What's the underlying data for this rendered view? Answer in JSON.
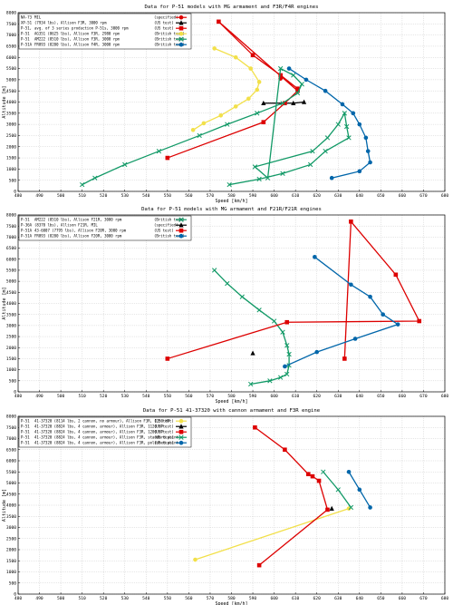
{
  "colors": {
    "red": "#dd0000",
    "yellow": "#f2e04a",
    "green": "#119966",
    "blue": "#0066aa",
    "black": "#000000",
    "grid": "#cccccc"
  },
  "chart_data": [
    {
      "type": "line",
      "title": "Data for P-51 models with MG armament and F3R/F4R engines",
      "xlabel": "Speed [km/h]",
      "ylabel": "Altitude [m]",
      "xlim": [
        480,
        680
      ],
      "ylim": [
        0,
        8000
      ],
      "x_ticks": [
        "480",
        "490",
        "500",
        "510",
        "520",
        "530",
        "540",
        "550",
        "560",
        "570",
        "580",
        "590",
        "600",
        "610",
        "620",
        "630",
        "640",
        "650",
        "660",
        "670",
        "680"
      ],
      "y_ticks": [
        "0",
        "500",
        "1000",
        "1500",
        "2000",
        "2500",
        "3000",
        "3500",
        "4000",
        "4500",
        "5000",
        "5500",
        "6000",
        "6500",
        "7000",
        "7500",
        "8000"
      ],
      "grid": true,
      "legend_position": "top-left",
      "series": [
        {
          "name": "NA-73",
          "detail": "MIL",
          "note": "(specified)",
          "color": "red",
          "marker": "circle",
          "x": [
            603
          ],
          "y": [
            5050
          ]
        },
        {
          "name": "XP-51",
          "detail": "(7934 lbs), Allison F3R,  3000 rpm",
          "note": "(US test)",
          "color": "black",
          "marker": "triangle",
          "x": [
            595,
            609,
            614
          ],
          "y": [
            3950,
            3950,
            4000
          ]
        },
        {
          "name": "P-51,",
          "detail": "avg. of 3 series production P-51s, 3000 rpm",
          "note": "(US test)",
          "color": "red",
          "marker": "square",
          "x": [
            550,
            595,
            605,
            611,
            574,
            590,
            603,
            611
          ],
          "y": [
            1500,
            3100,
            3950,
            4500,
            7600,
            6100,
            5200,
            4600
          ]
        },
        {
          "name": "P-51",
          "detail": "AG351 (8625 lbs), Allison F3R,  2980 rpm",
          "note": "(British test)",
          "color": "yellow",
          "marker": "circle",
          "x": [
            562,
            567,
            575,
            582,
            588,
            592,
            593,
            589,
            582,
            572
          ],
          "y": [
            2750,
            3050,
            3400,
            3800,
            4150,
            4550,
            4900,
            5500,
            6000,
            6400
          ]
        },
        {
          "name": "P-51",
          "detail": "AM222 (8510 lbs), Allison F3R,  3000 rpm",
          "note": "(British test)",
          "color": "green",
          "marker": "x",
          "x": [
            510,
            516,
            530,
            546,
            565,
            578,
            592,
            604,
            611,
            613,
            609,
            603,
            597,
            591,
            618,
            625,
            630,
            633,
            634,
            635,
            624,
            617,
            604,
            593,
            579
          ],
          "y": [
            300,
            600,
            1200,
            1800,
            2500,
            3000,
            3500,
            3950,
            4400,
            4800,
            5200,
            5500,
            600,
            1100,
            1800,
            2400,
            3000,
            3500,
            2900,
            2400,
            1800,
            1200,
            800,
            550,
            300
          ]
        },
        {
          "name": "P-51A",
          "detail": "FR893 (8200 lbs), Allison F4R,  3000 rpm",
          "note": "(British test)",
          "color": "blue",
          "marker": "circle",
          "x": [
            607,
            615,
            624,
            632,
            637,
            640,
            643,
            644,
            645,
            640,
            627
          ],
          "y": [
            5500,
            5000,
            4500,
            3900,
            3500,
            3000,
            2400,
            1800,
            1300,
            900,
            600
          ]
        }
      ]
    },
    {
      "type": "line",
      "title": "Data for P-51 models with MG armament and F21R/F21R engines",
      "xlabel": "Speed [km/h]",
      "ylabel": "Altitude [m]",
      "xlim": [
        480,
        680
      ],
      "ylim": [
        0,
        8000
      ],
      "x_ticks": [
        "480",
        "490",
        "500",
        "510",
        "520",
        "530",
        "540",
        "550",
        "560",
        "570",
        "580",
        "590",
        "600",
        "610",
        "620",
        "630",
        "640",
        "650",
        "660",
        "670",
        "680"
      ],
      "y_ticks": [
        "0",
        "500",
        "1000",
        "1500",
        "2000",
        "2500",
        "3000",
        "3500",
        "4000",
        "4500",
        "5000",
        "5500",
        "6000",
        "6500",
        "7000",
        "7500",
        "8000"
      ],
      "grid": true,
      "legend_position": "top-left",
      "series": [
        {
          "name": "P-51",
          "detail": "AM222 (8510 lbs), Allison F21R,  3000 rpm",
          "note": "(British test)",
          "color": "green",
          "marker": "x",
          "x": [
            572,
            578,
            585,
            593,
            600,
            604,
            606,
            607,
            607,
            606,
            603,
            598,
            589
          ],
          "y": [
            5500,
            4900,
            4300,
            3700,
            3200,
            2700,
            2100,
            1700,
            1200,
            800,
            650,
            500,
            350
          ]
        },
        {
          "name": "P-36A",
          "detail": "(8370 lbs), Allison F21R, MIL",
          "note": "(specified)",
          "color": "black",
          "marker": "triangle",
          "x": [
            590
          ],
          "y": [
            1750
          ]
        },
        {
          "name": "P-51A",
          "detail": "43-6007 (7795 lbs), Allison F20R, 3000 rpm",
          "note": "(US test)",
          "color": "red",
          "marker": "square",
          "x": [
            550,
            606,
            668,
            657,
            636,
            633
          ],
          "y": [
            1500,
            3150,
            3200,
            5300,
            7700,
            1500
          ]
        },
        {
          "name": "P-51A",
          "detail": "FR893 (8200 lbs), Allison F20R, 3000 rpm",
          "note": "(British test)",
          "color": "blue",
          "marker": "circle",
          "x": [
            619,
            636,
            645,
            651,
            658,
            638,
            620,
            605
          ],
          "y": [
            6100,
            4850,
            4300,
            3500,
            3050,
            2400,
            1800,
            1150
          ]
        }
      ]
    },
    {
      "type": "line",
      "title": "Data for P-51 41-37320 with cannon armament and F3R engine",
      "xlabel": "Speed [km/h]",
      "ylabel": "Altitude [m]",
      "xlim": [
        480,
        680
      ],
      "ylim": [
        0,
        8000
      ],
      "x_ticks": [
        "480",
        "490",
        "500",
        "510",
        "520",
        "530",
        "540",
        "550",
        "560",
        "570",
        "580",
        "590",
        "600",
        "610",
        "620",
        "630",
        "640",
        "650",
        "660",
        "670",
        "680"
      ],
      "y_ticks": [
        "0",
        "500",
        "1000",
        "1500",
        "2000",
        "2500",
        "3000",
        "3500",
        "4000",
        "4500",
        "5000",
        "5500",
        "6000",
        "6500",
        "7000",
        "7500",
        "8000"
      ],
      "grid": true,
      "legend_position": "top-left",
      "series": [
        {
          "name": "P-51",
          "detail": "41-37320 (8114 lbs, 2 cannon, no armour), Allison F3R, 1150 HP",
          "note": "(US test)",
          "color": "yellow",
          "marker": "circle",
          "x": [
            563,
            635
          ],
          "y": [
            1550,
            3850
          ]
        },
        {
          "name": "P-51",
          "detail": "41-37320 (8824 lbs, 4 cannon, armour), Allison F3R, 1120 HP",
          "note": "(US test)",
          "color": "black",
          "marker": "triangle",
          "x": [
            627
          ],
          "y": [
            3850
          ]
        },
        {
          "name": "P-51",
          "detail": "41-37320 (8824 lbs, 4 cannon, armour), Allison F3R, 1200 HP",
          "note": "(US test)",
          "color": "red",
          "marker": "square",
          "x": [
            593,
            625,
            621,
            618,
            616,
            605,
            591
          ],
          "y": [
            1300,
            3800,
            5100,
            5300,
            5400,
            6500,
            7500
          ]
        },
        {
          "name": "P-51",
          "detail": "41-37320 (8824 lbs, 4 cannon, armour), Allison F3R, standard paint",
          "note": "(US test)",
          "color": "green",
          "marker": "x",
          "x": [
            636,
            630,
            623
          ],
          "y": [
            3900,
            4700,
            5500
          ]
        },
        {
          "name": "P-51",
          "detail": "41-37320 (8824 lbs, 4 cannon, armour), Allison F3R, polished paint",
          "note": "(US test)",
          "color": "blue",
          "marker": "circle",
          "x": [
            645,
            640,
            635
          ],
          "y": [
            3900,
            4700,
            5500
          ]
        }
      ]
    }
  ]
}
